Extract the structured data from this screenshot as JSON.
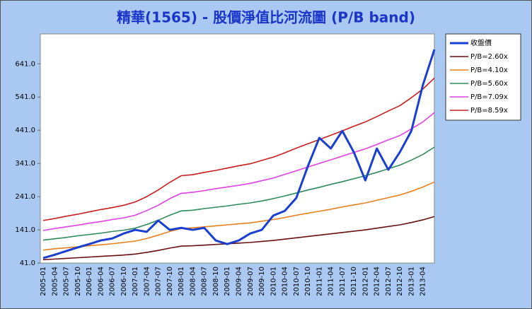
{
  "chart_data": {
    "type": "line",
    "title": "精華(1565)  - 股價淨值比河流圖 (P/B band)",
    "categories": [
      "2005-01",
      "2005-04",
      "2005-07",
      "2005-10",
      "2006-01",
      "2006-04",
      "2006-07",
      "2006-10",
      "2007-01",
      "2007-04",
      "2007-07",
      "2007-10",
      "2008-01",
      "2008-04",
      "2008-07",
      "2008-10",
      "2009-01",
      "2009-04",
      "2009-07",
      "2009-10",
      "2010-01",
      "2010-04",
      "2010-07",
      "2010-10",
      "2011-01",
      "2011-04",
      "2011-07",
      "2011-10",
      "2012-01",
      "2012-04",
      "2012-07",
      "2012-10",
      "2013-01",
      "2013-04",
      null
    ],
    "series": [
      {
        "name": "收盤價",
        "color": "#1a3fd0",
        "width": 3,
        "values": [
          56,
          66,
          77,
          88,
          98,
          109,
          115,
          130,
          141,
          135,
          169,
          141,
          147,
          141,
          147,
          109,
          98,
          109,
          130,
          141,
          184,
          198,
          237,
          332,
          418,
          386,
          439,
          375,
          290,
          386,
          322,
          375,
          439,
          577,
          684
        ]
      },
      {
        "name": "P/B=2.60x",
        "color": "#6b1010",
        "width": 1.6,
        "values": [
          51,
          53,
          55,
          57,
          59,
          61,
          63,
          65,
          68,
          73,
          79,
          86,
          92,
          93,
          95,
          97,
          99,
          101,
          103,
          106,
          109,
          113,
          117,
          121,
          125,
          129,
          133,
          137,
          141,
          146,
          151,
          156,
          163,
          171,
          181
        ]
      },
      {
        "name": "P/B=4.10x",
        "color": "#e8801e",
        "width": 1.6,
        "values": [
          80,
          84,
          87,
          90,
          93,
          96,
          99,
          103,
          107,
          115,
          125,
          136,
          145,
          147,
          150,
          153,
          156,
          159,
          162,
          167,
          172,
          178,
          185,
          191,
          197,
          203,
          210,
          216,
          222,
          230,
          238,
          246,
          257,
          270,
          285
        ]
      },
      {
        "name": "P/B=5.60x",
        "color": "#2e8b5a",
        "width": 1.6,
        "values": [
          110,
          114,
          118,
          123,
          127,
          131,
          136,
          140,
          146,
          157,
          170,
          185,
          198,
          200,
          205,
          209,
          213,
          218,
          222,
          228,
          235,
          243,
          252,
          261,
          269,
          278,
          286,
          295,
          304,
          314,
          325,
          336,
          351,
          368,
          390
        ]
      },
      {
        "name": "P/B=7.09x",
        "color": "#e040e6",
        "width": 1.6,
        "values": [
          139,
          145,
          150,
          155,
          161,
          166,
          172,
          177,
          185,
          199,
          215,
          235,
          251,
          254,
          259,
          265,
          270,
          275,
          281,
          289,
          297,
          308,
          319,
          330,
          341,
          352,
          363,
          374,
          385,
          398,
          412,
          425,
          445,
          466,
          494
        ]
      },
      {
        "name": "P/B=8.59x",
        "color": "#c81e1e",
        "width": 1.6,
        "values": [
          169,
          175,
          182,
          188,
          195,
          202,
          208,
          215,
          225,
          241,
          261,
          284,
          304,
          307,
          314,
          320,
          327,
          334,
          340,
          350,
          360,
          373,
          387,
          400,
          413,
          426,
          439,
          453,
          466,
          482,
          499,
          515,
          539,
          565,
          598
        ]
      }
    ],
    "ylim": [
      41,
      731
    ],
    "yticks": [
      {
        "value": 41,
        "label": "41.0"
      },
      {
        "value": 141,
        "label": "141.0"
      },
      {
        "value": 241,
        "label": "241.0"
      },
      {
        "value": 341,
        "label": "341.0"
      },
      {
        "value": 441,
        "label": "441.0"
      },
      {
        "value": 541,
        "label": "541.0"
      },
      {
        "value": 641,
        "label": "641.0"
      }
    ],
    "legend": "right"
  }
}
